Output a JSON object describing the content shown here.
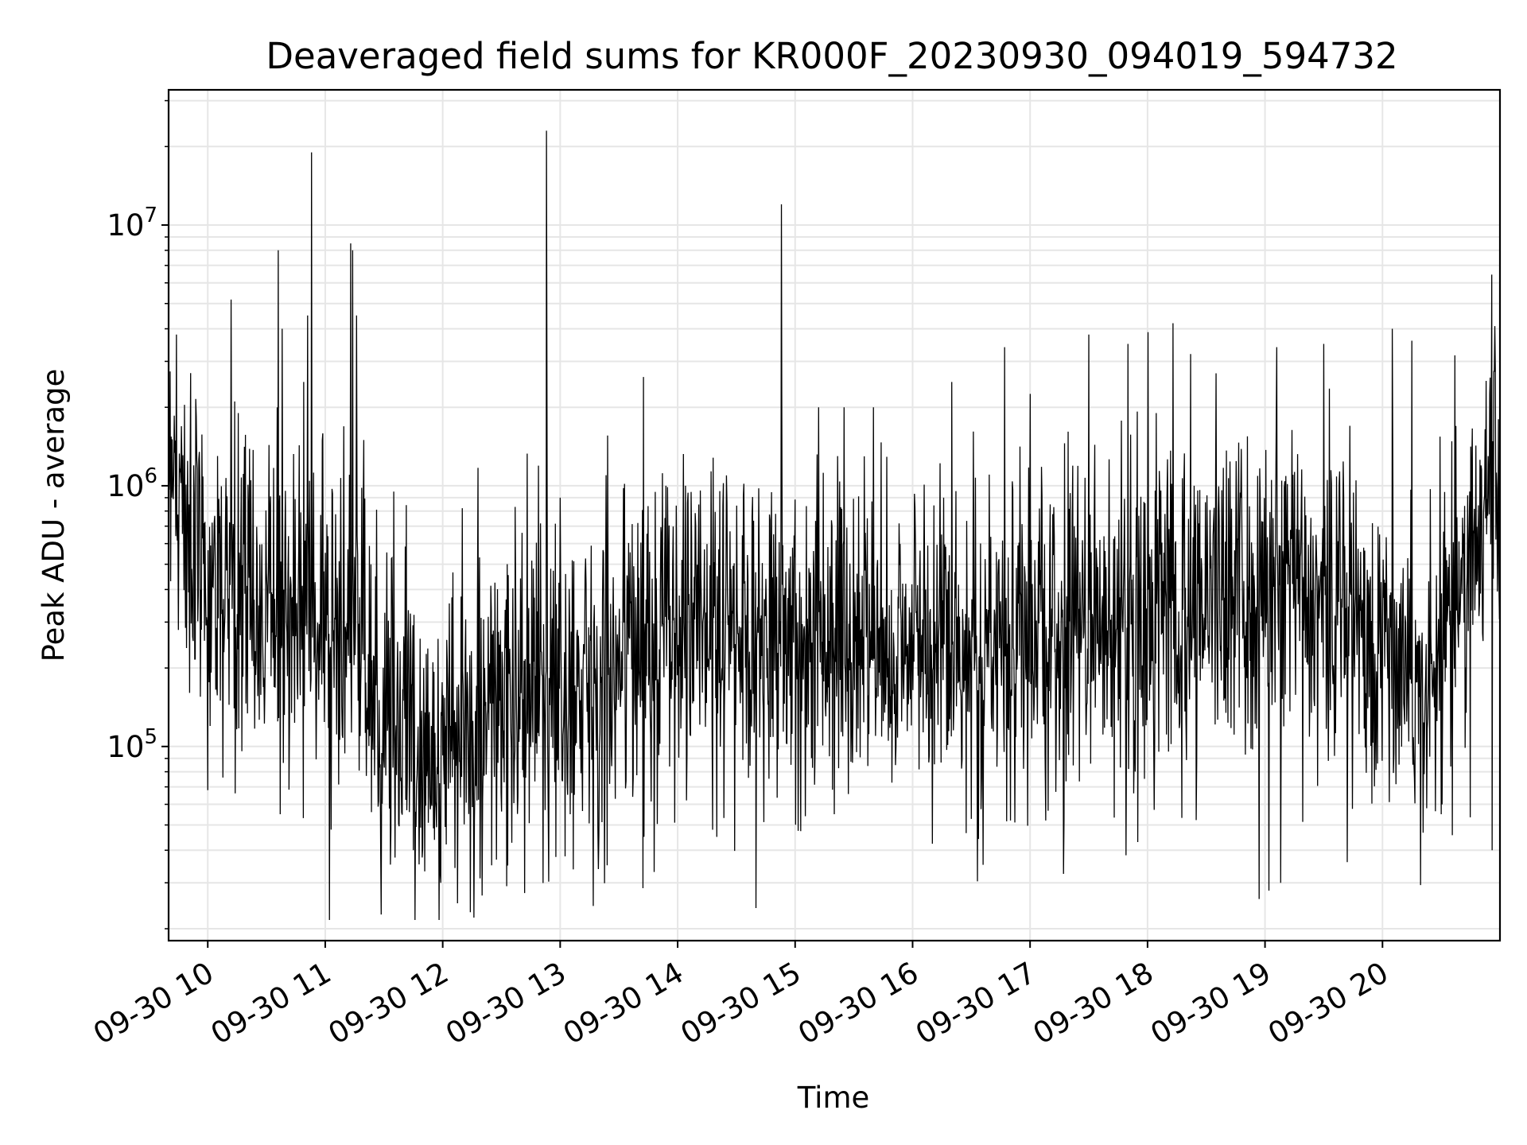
{
  "chart_data": {
    "type": "line",
    "title": "Deaveraged field sums for KR000F_20230930_094019_594732",
    "xlabel": "Time",
    "ylabel": "Peak ADU - average",
    "y_scale": "log",
    "grid": true,
    "line_color": "#000000",
    "grid_color": "#e6e6e6",
    "xlim": [
      "2023-09-30T09:40",
      "2023-09-30T21:00"
    ],
    "ylim": [
      18000,
      33000000
    ],
    "x_ticks": [
      {
        "t": "2023-09-30T10:00",
        "label": "09-30 10"
      },
      {
        "t": "2023-09-30T11:00",
        "label": "09-30 11"
      },
      {
        "t": "2023-09-30T12:00",
        "label": "09-30 12"
      },
      {
        "t": "2023-09-30T13:00",
        "label": "09-30 13"
      },
      {
        "t": "2023-09-30T14:00",
        "label": "09-30 14"
      },
      {
        "t": "2023-09-30T15:00",
        "label": "09-30 15"
      },
      {
        "t": "2023-09-30T16:00",
        "label": "09-30 16"
      },
      {
        "t": "2023-09-30T17:00",
        "label": "09-30 17"
      },
      {
        "t": "2023-09-30T18:00",
        "label": "09-30 18"
      },
      {
        "t": "2023-09-30T19:00",
        "label": "09-30 19"
      },
      {
        "t": "2023-09-30T20:00",
        "label": "09-30 20"
      }
    ],
    "y_ticks": [
      {
        "value": 100000,
        "base": "10",
        "exp": "5"
      },
      {
        "value": 1000000,
        "base": "10",
        "exp": "6"
      },
      {
        "value": 10000000,
        "base": "10",
        "exp": "7"
      }
    ],
    "series": [
      {
        "envelope": [
          [
            "2023-09-30T09:40",
            1800000
          ],
          [
            "2023-09-30T09:55",
            450000
          ],
          [
            "2023-09-30T10:20",
            350000
          ],
          [
            "2023-09-30T10:45",
            350000
          ],
          [
            "2023-09-30T11:10",
            280000
          ],
          [
            "2023-09-30T11:40",
            120000
          ],
          [
            "2023-09-30T12:00",
            90000
          ],
          [
            "2023-09-30T12:20",
            130000
          ],
          [
            "2023-09-30T13:00",
            160000
          ],
          [
            "2023-09-30T13:45",
            260000
          ],
          [
            "2023-09-30T14:30",
            300000
          ],
          [
            "2023-09-30T15:30",
            250000
          ],
          [
            "2023-09-30T16:30",
            250000
          ],
          [
            "2023-09-30T17:30",
            280000
          ],
          [
            "2023-09-30T18:30",
            380000
          ],
          [
            "2023-09-30T19:30",
            420000
          ],
          [
            "2023-09-30T20:20",
            180000
          ],
          [
            "2023-09-30T20:45",
            500000
          ],
          [
            "2023-09-30T21:00",
            1400000
          ]
        ],
        "spikes": [
          [
            "2023-09-30T09:44",
            3800000
          ],
          [
            "2023-09-30T10:05",
            1300000
          ],
          [
            "2023-09-30T10:22",
            1050000
          ],
          [
            "2023-09-30T10:36",
            8000000
          ],
          [
            "2023-09-30T10:38",
            4000000
          ],
          [
            "2023-09-30T10:49",
            2500000
          ],
          [
            "2023-09-30T10:51",
            4500000
          ],
          [
            "2023-09-30T10:53",
            19000000
          ],
          [
            "2023-09-30T11:13",
            8500000
          ],
          [
            "2023-09-30T11:14",
            8000000
          ],
          [
            "2023-09-30T11:16",
            4500000
          ],
          [
            "2023-09-30T11:35",
            950000
          ],
          [
            "2023-09-30T12:10",
            820000
          ],
          [
            "2023-09-30T12:37",
            830000
          ],
          [
            "2023-09-30T12:53",
            23000000
          ],
          [
            "2023-09-30T13:00",
            900000
          ],
          [
            "2023-09-30T13:54",
            1000000
          ],
          [
            "2023-09-30T14:04",
            1000000
          ],
          [
            "2023-09-30T14:53",
            12000000
          ],
          [
            "2023-09-30T15:12",
            2000000
          ],
          [
            "2023-09-30T15:25",
            2000000
          ],
          [
            "2023-09-30T15:40",
            2000000
          ],
          [
            "2023-09-30T16:20",
            2500000
          ],
          [
            "2023-09-30T16:47",
            3400000
          ],
          [
            "2023-09-30T17:30",
            3800000
          ],
          [
            "2023-09-30T17:50",
            3500000
          ],
          [
            "2023-09-30T18:13",
            4200000
          ],
          [
            "2023-09-30T18:22",
            3200000
          ],
          [
            "2023-09-30T18:35",
            2700000
          ],
          [
            "2023-09-30T19:06",
            3400000
          ],
          [
            "2023-09-30T19:30",
            3500000
          ],
          [
            "2023-09-30T20:05",
            4000000
          ],
          [
            "2023-09-30T20:15",
            3600000
          ],
          [
            "2023-09-30T20:55",
            2600000
          ]
        ],
        "dips": [
          [
            "2023-09-30T09:45",
            280000
          ],
          [
            "2023-09-30T10:00",
            68000
          ],
          [
            "2023-09-30T10:37",
            55000
          ],
          [
            "2023-09-30T11:03",
            48000
          ],
          [
            "2023-09-30T11:45",
            40000
          ],
          [
            "2023-09-30T11:59",
            30000
          ],
          [
            "2023-09-30T12:25",
            35000
          ],
          [
            "2023-09-30T12:54",
            44000
          ],
          [
            "2023-09-30T13:24",
            35000
          ],
          [
            "2023-09-30T13:48",
            33000
          ],
          [
            "2023-09-30T14:20",
            45000
          ],
          [
            "2023-09-30T14:40",
            24000
          ],
          [
            "2023-09-30T15:20",
            55000
          ],
          [
            "2023-09-30T16:50",
            52000
          ],
          [
            "2023-09-30T17:08",
            52000
          ],
          [
            "2023-09-30T17:55",
            43000
          ],
          [
            "2023-09-30T18:57",
            26000
          ],
          [
            "2023-09-30T19:02",
            28000
          ],
          [
            "2023-09-30T19:08",
            30000
          ],
          [
            "2023-09-30T19:42",
            36000
          ],
          [
            "2023-09-30T20:30",
            55000
          ],
          [
            "2023-09-30T20:56",
            40000
          ]
        ]
      }
    ]
  }
}
